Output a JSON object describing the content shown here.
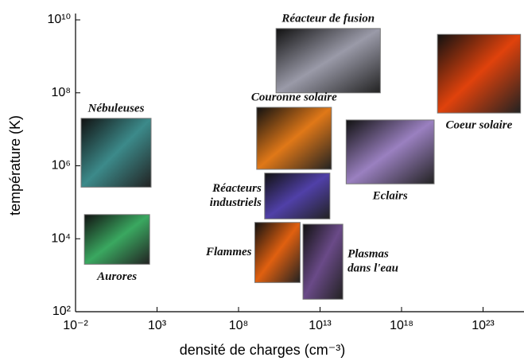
{
  "chart_data": {
    "type": "regions",
    "xlabel": "densité de charges (cm⁻³)",
    "ylabel": "température (K)",
    "log_x": true,
    "log_y": true,
    "xlim": [
      0.01,
      1e+25
    ],
    "ylim": [
      100,
      10000000000.0
    ],
    "xticks": [
      {
        "value": 0.01,
        "label": "10⁻²"
      },
      {
        "value": 1000,
        "label": "10³"
      },
      {
        "value": 100000000.0,
        "label": "10⁸"
      },
      {
        "value": 10000000000000.0,
        "label": "10¹³"
      },
      {
        "value": 1e+18,
        "label": "10¹⁸"
      },
      {
        "value": 1e+23,
        "label": "10²³"
      }
    ],
    "yticks": [
      {
        "value": 100,
        "label": "10²"
      },
      {
        "value": 10000,
        "label": "10⁴"
      },
      {
        "value": 1000000,
        "label": "10⁶"
      },
      {
        "value": 100000000,
        "label": "10⁸"
      },
      {
        "value": 10000000000,
        "label": "10¹⁰"
      }
    ],
    "regions": [
      {
        "label": [
          "Réacteur de fusion"
        ],
        "color": "#9a9aa8",
        "xlim": [
          20000000000.0,
          5e+16
        ],
        "ylim": [
          100000000.0,
          5800000000.0
        ]
      },
      {
        "label": [
          "Coeur solaire"
        ],
        "color": "#e0420c",
        "xlim": [
          1.6e+20,
          2e+25
        ],
        "ylim": [
          28000000.0,
          4000000000.0
        ]
      },
      {
        "label": [
          "Nébuleuses"
        ],
        "color": "#3c8a8a",
        "xlim": [
          0.022,
          430
        ],
        "ylim": [
          260000.0,
          20000000.0
        ]
      },
      {
        "label": [
          "Couronne solaire"
        ],
        "color": "#e07818",
        "xlim": [
          1300000000.0,
          50000000000000.0
        ],
        "ylim": [
          800000.0,
          40000000.0
        ]
      },
      {
        "label": [
          "Eclairs"
        ],
        "color": "#9a80c0",
        "xlim": [
          400000000000000.0,
          1e+20
        ],
        "ylim": [
          320000.0,
          18000000.0
        ]
      },
      {
        "label": [
          "Réacteurs",
          "industriels"
        ],
        "color": "#5040a8",
        "xlim": [
          4000000000.0,
          40000000000000.0
        ],
        "ylim": [
          35000,
          630000
        ]
      },
      {
        "label": [
          "Aurores"
        ],
        "color": "#3aa860",
        "xlim": [
          0.035,
          350
        ],
        "ylim": [
          2000,
          46000
        ]
      },
      {
        "label": [
          "Flammes"
        ],
        "color": "#e06010",
        "xlim": [
          1000000000.0,
          600000000000.0
        ],
        "ylim": [
          630,
          28000
        ]
      },
      {
        "label": [
          "Plasmas",
          "dans l'eau"
        ],
        "color": "#6a4a88",
        "xlim": [
          900000000000.0,
          250000000000000.0
        ],
        "ylim": [
          220,
          25000
        ]
      }
    ]
  }
}
